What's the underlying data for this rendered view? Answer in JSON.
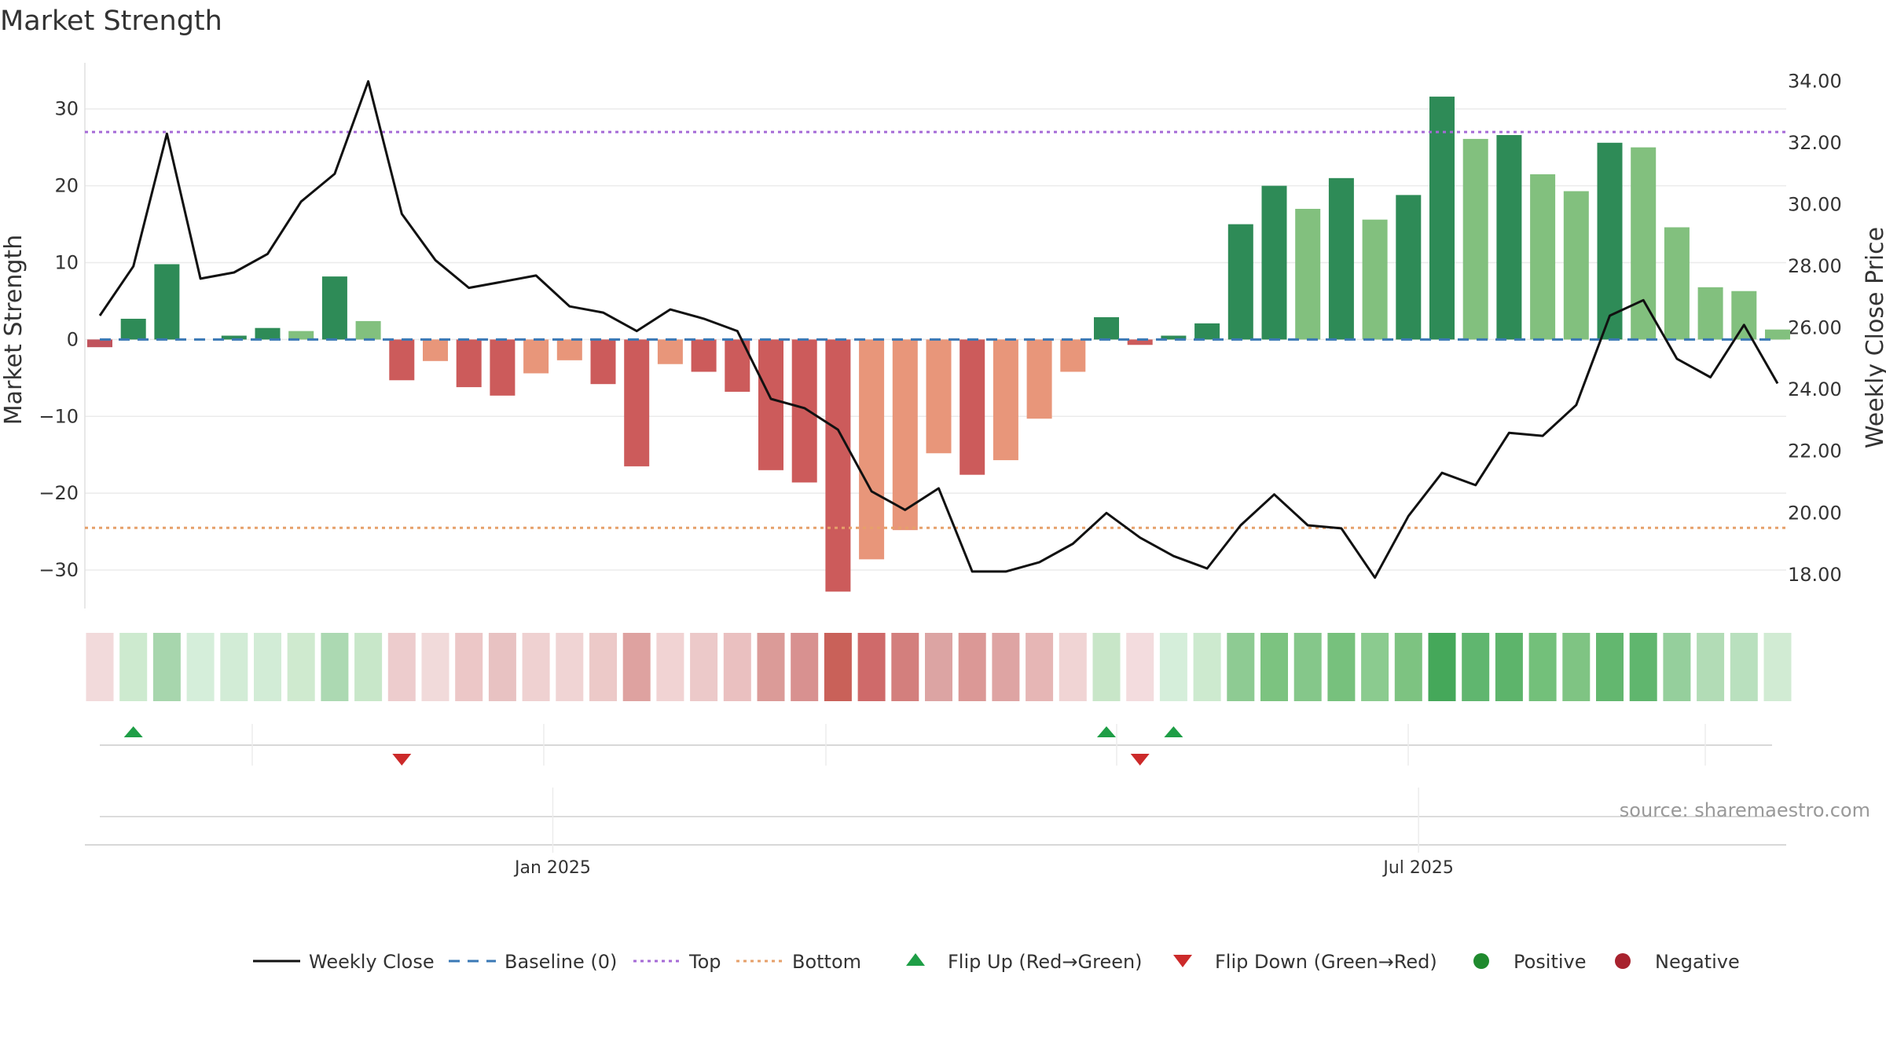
{
  "chart_data": {
    "type": "bar",
    "title": "Market Strength",
    "ylabel_left": "Market Strength",
    "ylabel_right": "Weekly Close Price",
    "ylim_left": [
      -35,
      36
    ],
    "ylim_right": [
      16.9,
      34.6
    ],
    "yticks_left": [
      30,
      20,
      10,
      0,
      -10,
      -20,
      -30
    ],
    "yticks_left_labels": [
      "30",
      "20",
      "10",
      "0",
      "−10",
      "−20",
      "−30"
    ],
    "yticks_right": [
      34,
      32,
      30,
      28,
      26,
      24,
      22,
      20,
      18
    ],
    "yticks_right_labels": [
      "34.00",
      "32.00",
      "30.00",
      "28.00",
      "26.00",
      "24.00",
      "22.00",
      "20.00",
      "18.00"
    ],
    "x_ticks": [
      {
        "index": 13.5,
        "label": "Jan 2025"
      },
      {
        "index": 39.3,
        "label": "Jul 2025"
      }
    ],
    "top_level": 27,
    "bottom_level": -24.5,
    "baseline": 0,
    "market_strength": [
      -1,
      2.7,
      9.8,
      0,
      0.5,
      1.5,
      1.1,
      8.2,
      2.4,
      -5.3,
      -2.8,
      -6.2,
      -7.3,
      -4.4,
      -2.7,
      -5.8,
      -16.5,
      -3.2,
      -4.2,
      -6.8,
      -17,
      -18.6,
      -32.8,
      -28.6,
      -24.8,
      -14.8,
      -17.6,
      -15.7,
      -10.3,
      -4.2,
      2.9,
      -0.7,
      0.5,
      2.1,
      15,
      20,
      17,
      21,
      15.6,
      18.8,
      31.6,
      26.1,
      26.6,
      21.5,
      19.3,
      25.6,
      25,
      14.6,
      6.8,
      6.3,
      1.3
    ],
    "weekly_close": [
      26.4,
      28,
      32.3,
      27.6,
      27.8,
      28.4,
      30.1,
      31,
      34,
      29.7,
      28.2,
      27.3,
      27.5,
      27.7,
      26.7,
      26.5,
      25.9,
      26.6,
      26.3,
      25.9,
      23.7,
      23.4,
      22.7,
      20.7,
      20.1,
      20.8,
      18.1,
      18.1,
      18.4,
      19,
      20,
      19.2,
      18.6,
      18.2,
      19.6,
      20.6,
      19.6,
      19.5,
      17.9,
      19.9,
      21.3,
      20.9,
      22.6,
      22.5,
      23.5,
      26.4,
      26.9,
      25,
      24.4,
      26.1,
      24.2
    ],
    "strength_bar_colors": [
      "#c0535c",
      "#2e8b57",
      "#2e8b57",
      "#2e8b57",
      "#2e8b57",
      "#2e8b57",
      "#82c07e",
      "#2e8b57",
      "#82c07e",
      "#cc5b5b",
      "#e8967a",
      "#cc5b5b",
      "#cc5b5b",
      "#e8967a",
      "#e8967a",
      "#cc5b5b",
      "#cc5b5b",
      "#e8967a",
      "#cc5b5b",
      "#cc5b5b",
      "#cc5b5b",
      "#cc5b5b",
      "#cc5b5b",
      "#e8967a",
      "#e8967a",
      "#e8967a",
      "#cc5b5b",
      "#e8967a",
      "#e8967a",
      "#e8967a",
      "#2e8b57",
      "#cc5b5b",
      "#2e8b57",
      "#2e8b57",
      "#2e8b57",
      "#2e8b57",
      "#82c07e",
      "#2e8b57",
      "#82c07e",
      "#2e8b57",
      "#2e8b57",
      "#82c07e",
      "#2e8b57",
      "#82c07e",
      "#82c07e",
      "#2e8b57",
      "#82c07e",
      "#82c07e",
      "#82c07e",
      "#82c07e",
      "#82c07e"
    ],
    "heat_strip": [
      "#f2dadb",
      "#cdeacf",
      "#a7d6ad",
      "#d5eeda",
      "#d2ecd6",
      "#d2ecd6",
      "#cfeacf",
      "#acd9b2",
      "#c8e7c9",
      "#edcccd",
      "#f1dada",
      "#ecc7c7",
      "#e8c2c2",
      "#efd1d1",
      "#f0d4d4",
      "#ecc9c8",
      "#dea2a0",
      "#f1d3d3",
      "#ecc9c9",
      "#eac0c0",
      "#db9b98",
      "#d89190",
      "#c96159",
      "#cf6a6a",
      "#d37f7d",
      "#dca4a3",
      "#db9896",
      "#dea4a3",
      "#e6b6b5",
      "#f0d4d4",
      "#c8e6c8",
      "#f3dcde",
      "#d5eeda",
      "#cdeacf",
      "#8ecb93",
      "#7cc380",
      "#85c78a",
      "#77c17d",
      "#8bcb8f",
      "#7dc381",
      "#45a85a",
      "#60b66f",
      "#5db46b",
      "#73c07a",
      "#7fc483",
      "#63b76f",
      "#60b66e",
      "#95cf9c",
      "#b2dcb6",
      "#b9e0be",
      "#d1ebd3"
    ],
    "flip_up_indices": [
      1,
      30,
      32
    ],
    "flip_down_indices": [
      9,
      31
    ],
    "legend": [
      {
        "key": "close",
        "label": "Weekly Close",
        "color": "#111111"
      },
      {
        "key": "baseline",
        "label": "Baseline (0)",
        "color": "#3a78b5"
      },
      {
        "key": "top",
        "label": "Top",
        "color": "#a56ad6"
      },
      {
        "key": "bottom",
        "label": "Bottom",
        "color": "#e6a06a"
      },
      {
        "key": "flipup",
        "label": "Flip Up (Red→Green)",
        "color": "#1e9e46"
      },
      {
        "key": "flipdown",
        "label": "Flip Down (Green→Red)",
        "color": "#cc2a2a"
      },
      {
        "key": "positive",
        "label": "Positive",
        "color": "#1f8a2e"
      },
      {
        "key": "negative",
        "label": "Negative",
        "color": "#a8222e"
      }
    ],
    "source": "source: sharemaestro.com"
  }
}
